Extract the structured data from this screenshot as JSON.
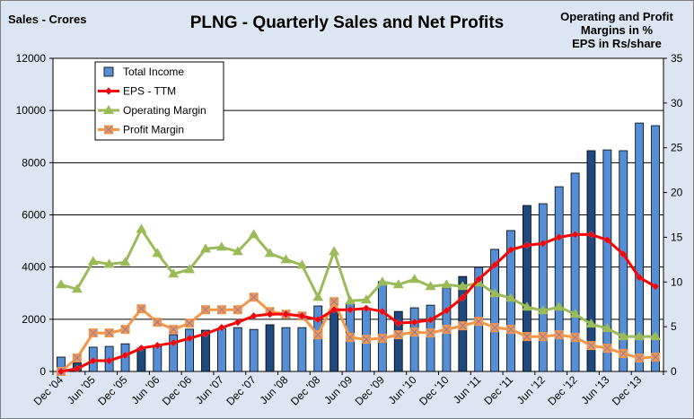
{
  "chart_data": {
    "type": "bar+line",
    "title": "PLNG - Quarterly Sales and Net Profits",
    "ylabel": "Sales - Crores",
    "y2label_lines": [
      "Operating and Profit",
      "Margins in %",
      "EPS in Rs/share"
    ],
    "ylim": [
      0,
      12000
    ],
    "y2lim": [
      0,
      35
    ],
    "yticks": [
      0,
      2000,
      4000,
      6000,
      8000,
      10000,
      12000
    ],
    "y2ticks": [
      0,
      5,
      10,
      15,
      20,
      25,
      30,
      35
    ],
    "grid": true,
    "legend_position": "top-left",
    "x": [
      "Dec '04",
      "Mar '05",
      "Jun '05",
      "Sep '05",
      "Dec '05",
      "Mar '06",
      "Jun '06",
      "Sep '06",
      "Dec '06",
      "Mar '07",
      "Jun '07",
      "Sep '07",
      "Dec '07",
      "Mar '08",
      "Jun '08",
      "Sep '08",
      "Dec '08",
      "Mar '09",
      "Jun '09",
      "Sep '09",
      "Dec '09",
      "Mar '10",
      "Jun '10",
      "Sep '10",
      "Dec '10",
      "Mar '11",
      "Jun '11",
      "Sep '11",
      "Dec '11",
      "Mar '12",
      "Jun '12",
      "Sep '12",
      "Dec '12",
      "Mar '13",
      "Jun '13",
      "Sep '13",
      "Dec '13",
      "Mar '14"
    ],
    "xtick_labels": [
      "Dec '04",
      "Jun '05",
      "Dec '05",
      "Jun '06",
      "Dec '06",
      "Jun '07",
      "Dec '07",
      "Jun '08",
      "Dec '08",
      "Jun '09",
      "Dec '09",
      "Jun '10",
      "Dec '10",
      "Jun '11",
      "Dec '11",
      "Jun '12",
      "Dec '12",
      "Jun '13",
      "Dec '13"
    ],
    "series": [
      {
        "name": "Total Income",
        "type": "bar",
        "axis": "left",
        "color": "#558ed5",
        "highlight_color": "#1f497d",
        "values": [
          550,
          340,
          930,
          960,
          1060,
          900,
          960,
          1410,
          1620,
          1580,
          1650,
          1680,
          1610,
          1790,
          1680,
          1680,
          2510,
          2350,
          2610,
          2400,
          3440,
          2300,
          2440,
          2540,
          3200,
          3640,
          3990,
          4680,
          5400,
          6360,
          6430,
          7080,
          7600,
          8460,
          8490,
          8460,
          9520,
          9420
        ]
      },
      {
        "name": "EPS - TTM",
        "type": "line",
        "axis": "right",
        "color": "#ff0000",
        "marker": "diamond",
        "values": [
          0,
          0.3,
          1.2,
          1.2,
          1.8,
          2.6,
          2.9,
          3.2,
          3.7,
          4.2,
          4.9,
          5.5,
          6.2,
          6.4,
          6.4,
          6.2,
          5.8,
          6.9,
          6.9,
          7.05,
          6.7,
          5.4,
          5.5,
          5.75,
          6.8,
          8.25,
          10.3,
          11.9,
          13.6,
          14.1,
          14.3,
          15.0,
          15.3,
          15.3,
          14.7,
          13.1,
          10.5,
          9.5
        ]
      },
      {
        "name": "Operating Margin",
        "type": "line",
        "axis": "right",
        "color": "#9bbb59",
        "marker": "triangle",
        "values": [
          9.7,
          9.2,
          12.3,
          12.0,
          12.2,
          15.9,
          13.2,
          10.9,
          11.4,
          13.7,
          13.9,
          13.4,
          15.3,
          13.2,
          12.5,
          11.9,
          8.3,
          13.4,
          7.9,
          8.0,
          10.0,
          9.7,
          10.3,
          9.5,
          9.7,
          9.5,
          9.9,
          8.7,
          8.2,
          7.2,
          6.8,
          7.2,
          6.4,
          5.3,
          4.8,
          3.9,
          3.9,
          3.9
        ]
      },
      {
        "name": "Profit Margin",
        "type": "line",
        "axis": "right",
        "color": "#f79646",
        "marker": "x-square",
        "values": [
          0,
          1.5,
          4.3,
          4.3,
          4.7,
          7.0,
          5.5,
          4.7,
          5.4,
          6.9,
          6.9,
          6.9,
          8.3,
          6.7,
          6.4,
          6.2,
          4.1,
          7.8,
          3.8,
          3.6,
          3.7,
          4.1,
          4.4,
          4.3,
          4.7,
          5.1,
          5.6,
          4.9,
          4.7,
          3.9,
          3.9,
          4.1,
          3.8,
          2.9,
          2.6,
          2.0,
          1.5,
          1.6
        ]
      }
    ]
  }
}
